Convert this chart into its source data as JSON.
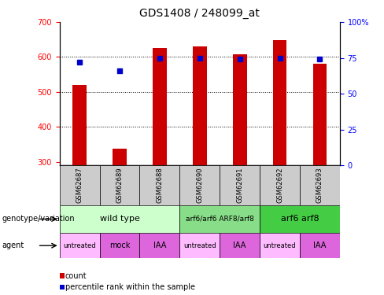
{
  "title": "GDS1408 / 248099_at",
  "samples": [
    "GSM62687",
    "GSM62689",
    "GSM62688",
    "GSM62690",
    "GSM62691",
    "GSM62692",
    "GSM62693"
  ],
  "bar_values": [
    521,
    338,
    625,
    630,
    607,
    648,
    580
  ],
  "bar_bottom": 290,
  "percentile_values": [
    72,
    66,
    75,
    75,
    74,
    75,
    74
  ],
  "ylim_left": [
    290,
    700
  ],
  "ylim_right": [
    0,
    100
  ],
  "yticks_left": [
    300,
    400,
    500,
    600,
    700
  ],
  "yticks_right": [
    0,
    25,
    50,
    75,
    100
  ],
  "bar_color": "#cc0000",
  "percentile_color": "#0000cc",
  "background_color": "#ffffff",
  "genotype_groups": [
    {
      "label": "wild type",
      "start": 0,
      "end": 3,
      "color": "#ccffcc",
      "fontsize": 8
    },
    {
      "label": "arf6/arf6 ARF8/arf8",
      "start": 3,
      "end": 5,
      "color": "#88dd88",
      "fontsize": 6.5
    },
    {
      "label": "arf6 arf8",
      "start": 5,
      "end": 7,
      "color": "#44cc44",
      "fontsize": 8
    }
  ],
  "agent_groups": [
    {
      "label": "untreated",
      "start": 0,
      "end": 1,
      "color": "#ffbbff",
      "fontsize": 6
    },
    {
      "label": "mock",
      "start": 1,
      "end": 2,
      "color": "#dd66dd",
      "fontsize": 7
    },
    {
      "label": "IAA",
      "start": 2,
      "end": 3,
      "color": "#dd66dd",
      "fontsize": 7
    },
    {
      "label": "untreated",
      "start": 3,
      "end": 4,
      "color": "#ffbbff",
      "fontsize": 6
    },
    {
      "label": "IAA",
      "start": 4,
      "end": 5,
      "color": "#dd66dd",
      "fontsize": 7
    },
    {
      "label": "untreated",
      "start": 5,
      "end": 6,
      "color": "#ffbbff",
      "fontsize": 6
    },
    {
      "label": "IAA",
      "start": 6,
      "end": 7,
      "color": "#dd66dd",
      "fontsize": 7
    }
  ],
  "legend_items": [
    {
      "label": "count",
      "color": "#cc0000"
    },
    {
      "label": "percentile rank within the sample",
      "color": "#0000cc"
    }
  ],
  "left_label": "genotype/variation",
  "agent_label": "agent",
  "sample_bg": "#cccccc",
  "sample_fontsize": 6
}
